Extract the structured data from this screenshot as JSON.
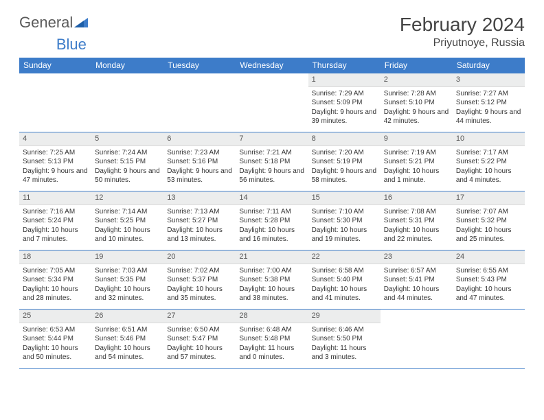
{
  "logo": {
    "word1": "General",
    "word2": "Blue"
  },
  "title": "February 2024",
  "location": "Priyutnoye, Russia",
  "colors": {
    "header_bg": "#3d7cc9",
    "header_text": "#ffffff",
    "daynum_bg": "#eceded",
    "border": "#3d7cc9",
    "body_text": "#333333"
  },
  "weekdays": [
    "Sunday",
    "Monday",
    "Tuesday",
    "Wednesday",
    "Thursday",
    "Friday",
    "Saturday"
  ],
  "grid": [
    [
      {
        "empty": true
      },
      {
        "empty": true
      },
      {
        "empty": true
      },
      {
        "empty": true
      },
      {
        "day": "1",
        "sunrise": "Sunrise: 7:29 AM",
        "sunset": "Sunset: 5:09 PM",
        "daylight": "Daylight: 9 hours and 39 minutes."
      },
      {
        "day": "2",
        "sunrise": "Sunrise: 7:28 AM",
        "sunset": "Sunset: 5:10 PM",
        "daylight": "Daylight: 9 hours and 42 minutes."
      },
      {
        "day": "3",
        "sunrise": "Sunrise: 7:27 AM",
        "sunset": "Sunset: 5:12 PM",
        "daylight": "Daylight: 9 hours and 44 minutes."
      }
    ],
    [
      {
        "day": "4",
        "sunrise": "Sunrise: 7:25 AM",
        "sunset": "Sunset: 5:13 PM",
        "daylight": "Daylight: 9 hours and 47 minutes."
      },
      {
        "day": "5",
        "sunrise": "Sunrise: 7:24 AM",
        "sunset": "Sunset: 5:15 PM",
        "daylight": "Daylight: 9 hours and 50 minutes."
      },
      {
        "day": "6",
        "sunrise": "Sunrise: 7:23 AM",
        "sunset": "Sunset: 5:16 PM",
        "daylight": "Daylight: 9 hours and 53 minutes."
      },
      {
        "day": "7",
        "sunrise": "Sunrise: 7:21 AM",
        "sunset": "Sunset: 5:18 PM",
        "daylight": "Daylight: 9 hours and 56 minutes."
      },
      {
        "day": "8",
        "sunrise": "Sunrise: 7:20 AM",
        "sunset": "Sunset: 5:19 PM",
        "daylight": "Daylight: 9 hours and 58 minutes."
      },
      {
        "day": "9",
        "sunrise": "Sunrise: 7:19 AM",
        "sunset": "Sunset: 5:21 PM",
        "daylight": "Daylight: 10 hours and 1 minute."
      },
      {
        "day": "10",
        "sunrise": "Sunrise: 7:17 AM",
        "sunset": "Sunset: 5:22 PM",
        "daylight": "Daylight: 10 hours and 4 minutes."
      }
    ],
    [
      {
        "day": "11",
        "sunrise": "Sunrise: 7:16 AM",
        "sunset": "Sunset: 5:24 PM",
        "daylight": "Daylight: 10 hours and 7 minutes."
      },
      {
        "day": "12",
        "sunrise": "Sunrise: 7:14 AM",
        "sunset": "Sunset: 5:25 PM",
        "daylight": "Daylight: 10 hours and 10 minutes."
      },
      {
        "day": "13",
        "sunrise": "Sunrise: 7:13 AM",
        "sunset": "Sunset: 5:27 PM",
        "daylight": "Daylight: 10 hours and 13 minutes."
      },
      {
        "day": "14",
        "sunrise": "Sunrise: 7:11 AM",
        "sunset": "Sunset: 5:28 PM",
        "daylight": "Daylight: 10 hours and 16 minutes."
      },
      {
        "day": "15",
        "sunrise": "Sunrise: 7:10 AM",
        "sunset": "Sunset: 5:30 PM",
        "daylight": "Daylight: 10 hours and 19 minutes."
      },
      {
        "day": "16",
        "sunrise": "Sunrise: 7:08 AM",
        "sunset": "Sunset: 5:31 PM",
        "daylight": "Daylight: 10 hours and 22 minutes."
      },
      {
        "day": "17",
        "sunrise": "Sunrise: 7:07 AM",
        "sunset": "Sunset: 5:32 PM",
        "daylight": "Daylight: 10 hours and 25 minutes."
      }
    ],
    [
      {
        "day": "18",
        "sunrise": "Sunrise: 7:05 AM",
        "sunset": "Sunset: 5:34 PM",
        "daylight": "Daylight: 10 hours and 28 minutes."
      },
      {
        "day": "19",
        "sunrise": "Sunrise: 7:03 AM",
        "sunset": "Sunset: 5:35 PM",
        "daylight": "Daylight: 10 hours and 32 minutes."
      },
      {
        "day": "20",
        "sunrise": "Sunrise: 7:02 AM",
        "sunset": "Sunset: 5:37 PM",
        "daylight": "Daylight: 10 hours and 35 minutes."
      },
      {
        "day": "21",
        "sunrise": "Sunrise: 7:00 AM",
        "sunset": "Sunset: 5:38 PM",
        "daylight": "Daylight: 10 hours and 38 minutes."
      },
      {
        "day": "22",
        "sunrise": "Sunrise: 6:58 AM",
        "sunset": "Sunset: 5:40 PM",
        "daylight": "Daylight: 10 hours and 41 minutes."
      },
      {
        "day": "23",
        "sunrise": "Sunrise: 6:57 AM",
        "sunset": "Sunset: 5:41 PM",
        "daylight": "Daylight: 10 hours and 44 minutes."
      },
      {
        "day": "24",
        "sunrise": "Sunrise: 6:55 AM",
        "sunset": "Sunset: 5:43 PM",
        "daylight": "Daylight: 10 hours and 47 minutes."
      }
    ],
    [
      {
        "day": "25",
        "sunrise": "Sunrise: 6:53 AM",
        "sunset": "Sunset: 5:44 PM",
        "daylight": "Daylight: 10 hours and 50 minutes."
      },
      {
        "day": "26",
        "sunrise": "Sunrise: 6:51 AM",
        "sunset": "Sunset: 5:46 PM",
        "daylight": "Daylight: 10 hours and 54 minutes."
      },
      {
        "day": "27",
        "sunrise": "Sunrise: 6:50 AM",
        "sunset": "Sunset: 5:47 PM",
        "daylight": "Daylight: 10 hours and 57 minutes."
      },
      {
        "day": "28",
        "sunrise": "Sunrise: 6:48 AM",
        "sunset": "Sunset: 5:48 PM",
        "daylight": "Daylight: 11 hours and 0 minutes."
      },
      {
        "day": "29",
        "sunrise": "Sunrise: 6:46 AM",
        "sunset": "Sunset: 5:50 PM",
        "daylight": "Daylight: 11 hours and 3 minutes."
      },
      {
        "empty": true
      },
      {
        "empty": true
      }
    ]
  ]
}
